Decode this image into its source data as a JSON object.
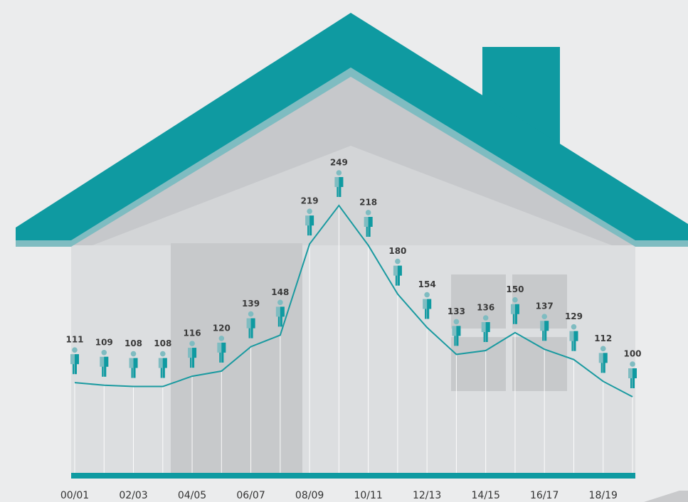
{
  "chart_data": {
    "type": "line",
    "categories": [
      "00/01",
      null,
      "02/03",
      null,
      "04/05",
      null,
      "06/07",
      null,
      "08/09",
      null,
      "10/11",
      null,
      "12/13",
      null,
      "14/15",
      null,
      "16/17",
      null,
      "18/19",
      null
    ],
    "values": [
      111,
      109,
      108,
      108,
      116,
      120,
      139,
      148,
      219,
      249,
      218,
      180,
      154,
      133,
      136,
      150,
      137,
      129,
      112,
      100
    ],
    "color": "#1a9aa0"
  }
}
